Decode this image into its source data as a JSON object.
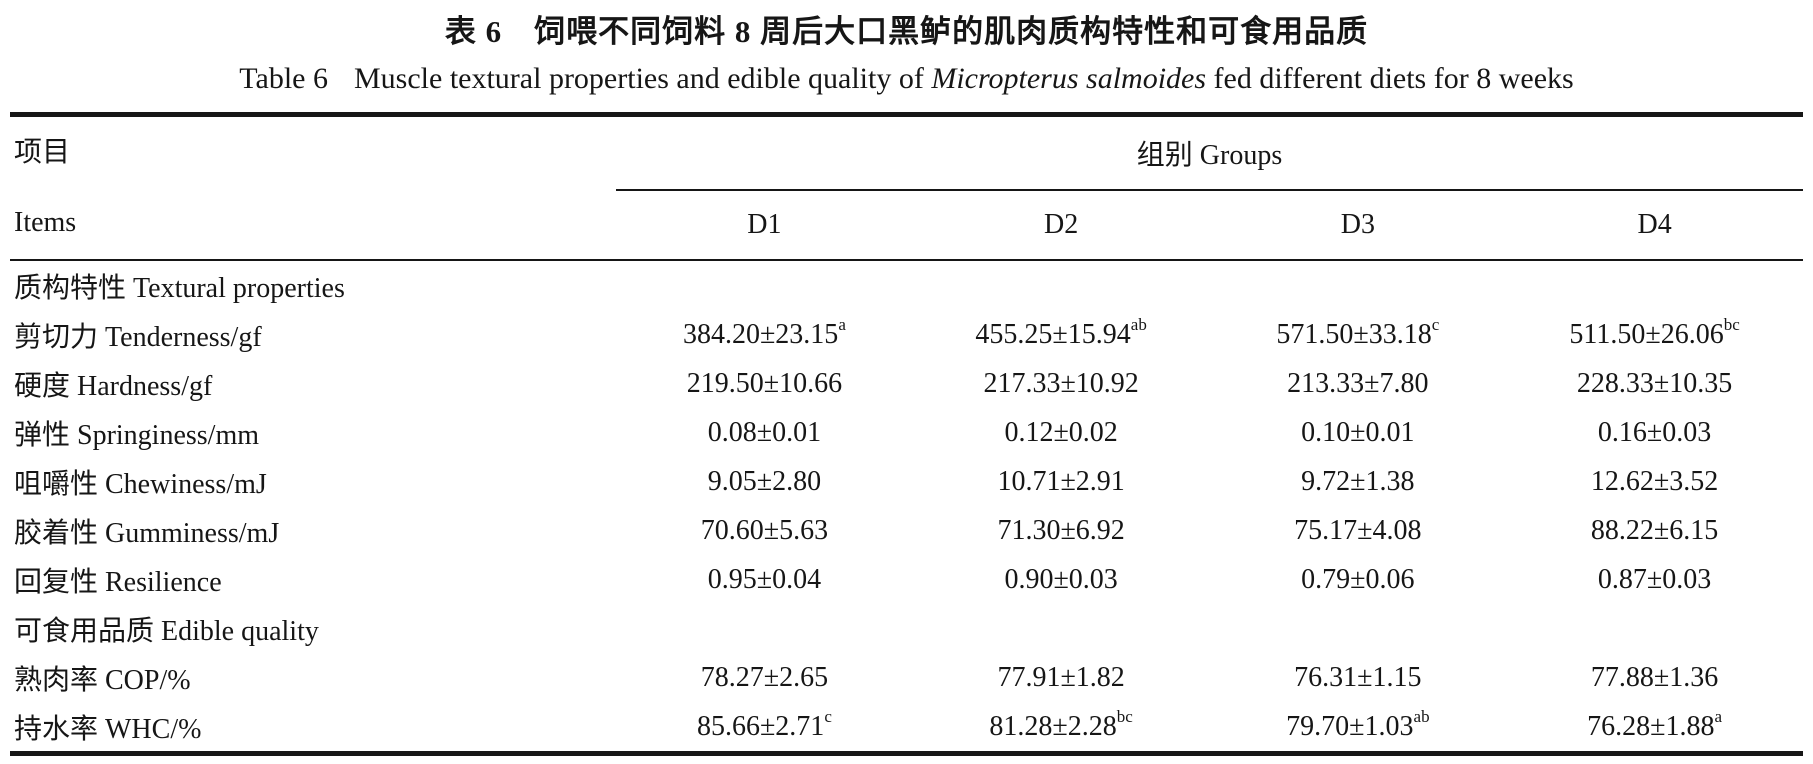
{
  "titles": {
    "zh": "表 6　饲喂不同饲料 8 周后大口黑鲈的肌肉质构特性和可食用品质",
    "en_label": "Table 6",
    "en_before_species": "Muscle textural properties and edible quality of ",
    "en_species": "Micropterus salmoides",
    "en_after_species": " fed different diets for 8 weeks"
  },
  "table": {
    "items_header_zh": "项目",
    "items_header_en": "Items",
    "groups_header": "组别 Groups",
    "group_columns": [
      "D1",
      "D2",
      "D3",
      "D4"
    ],
    "rows": [
      {
        "type": "section",
        "label": "质构特性 Textural properties"
      },
      {
        "type": "data",
        "label": "剪切力 Tenderness/gf",
        "cells": [
          {
            "v": "384.20±23.15",
            "s": "a"
          },
          {
            "v": "455.25±15.94",
            "s": "ab"
          },
          {
            "v": "571.50±33.18",
            "s": "c"
          },
          {
            "v": "511.50±26.06",
            "s": "bc"
          }
        ]
      },
      {
        "type": "data",
        "label": "硬度 Hardness/gf",
        "cells": [
          {
            "v": "219.50±10.66",
            "s": ""
          },
          {
            "v": "217.33±10.92",
            "s": ""
          },
          {
            "v": "213.33±7.80",
            "s": ""
          },
          {
            "v": "228.33±10.35",
            "s": ""
          }
        ]
      },
      {
        "type": "data",
        "label": "弹性 Springiness/mm",
        "cells": [
          {
            "v": "0.08±0.01",
            "s": ""
          },
          {
            "v": "0.12±0.02",
            "s": ""
          },
          {
            "v": "0.10±0.01",
            "s": ""
          },
          {
            "v": "0.16±0.03",
            "s": ""
          }
        ]
      },
      {
        "type": "data",
        "label": "咀嚼性 Chewiness/mJ",
        "cells": [
          {
            "v": "9.05±2.80",
            "s": ""
          },
          {
            "v": "10.71±2.91",
            "s": ""
          },
          {
            "v": "9.72±1.38",
            "s": ""
          },
          {
            "v": "12.62±3.52",
            "s": ""
          }
        ]
      },
      {
        "type": "data",
        "label": "胶着性 Gumminess/mJ",
        "cells": [
          {
            "v": "70.60±5.63",
            "s": ""
          },
          {
            "v": "71.30±6.92",
            "s": ""
          },
          {
            "v": "75.17±4.08",
            "s": ""
          },
          {
            "v": "88.22±6.15",
            "s": ""
          }
        ]
      },
      {
        "type": "data",
        "label": "回复性 Resilience",
        "cells": [
          {
            "v": "0.95±0.04",
            "s": ""
          },
          {
            "v": "0.90±0.03",
            "s": ""
          },
          {
            "v": "0.79±0.06",
            "s": ""
          },
          {
            "v": "0.87±0.03",
            "s": ""
          }
        ]
      },
      {
        "type": "section",
        "label": "可食用品质 Edible quality"
      },
      {
        "type": "data",
        "label": "熟肉率 COP/%",
        "cells": [
          {
            "v": "78.27±2.65",
            "s": ""
          },
          {
            "v": "77.91±1.82",
            "s": ""
          },
          {
            "v": "76.31±1.15",
            "s": ""
          },
          {
            "v": "77.88±1.36",
            "s": ""
          }
        ]
      },
      {
        "type": "data",
        "label": "持水率 WHC/%",
        "cells": [
          {
            "v": "85.66±2.71",
            "s": "c"
          },
          {
            "v": "81.28±2.28",
            "s": "bc"
          },
          {
            "v": "79.70±1.03",
            "s": "ab"
          },
          {
            "v": "76.28±1.88",
            "s": "a"
          }
        ]
      }
    ]
  }
}
